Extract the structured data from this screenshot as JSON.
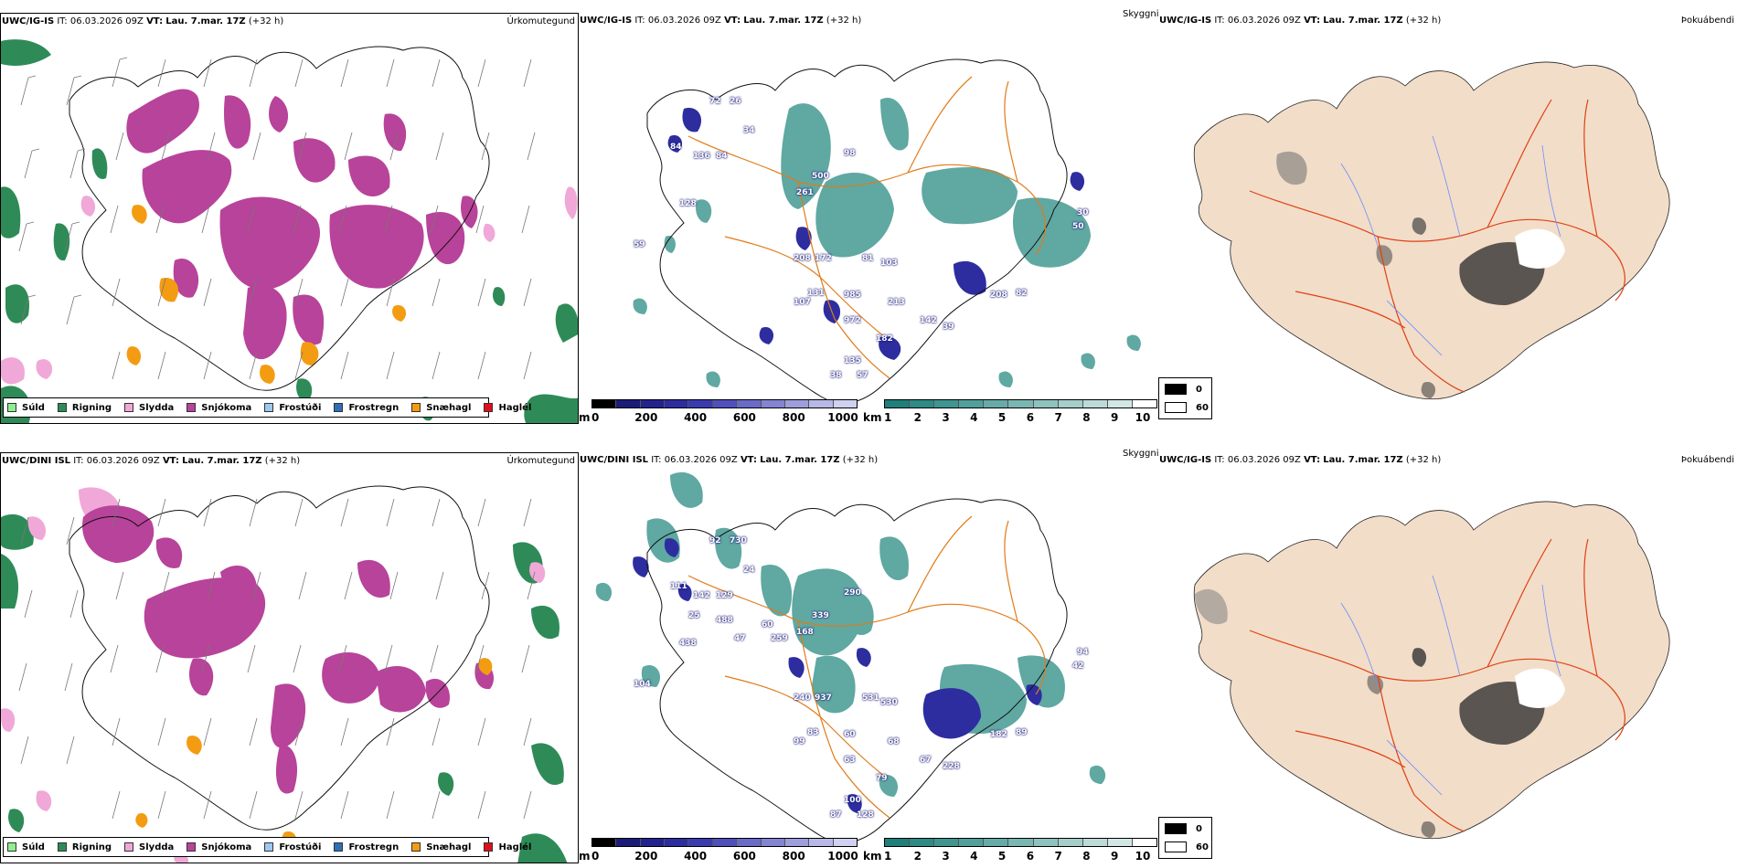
{
  "rows": [
    {
      "model": "UWC/IG-IS",
      "it_label": "IT:",
      "it_value": "06.03.2026 09Z",
      "vt_label": "VT:",
      "vt_value": "Lau. 7.mar. 17Z",
      "lead": "(+32 h)",
      "titles": {
        "ptype": "Úrkomutegund",
        "visibility": "Skyggni",
        "fog": "Þokuábendi"
      }
    },
    {
      "model": "UWC/DINI ISL",
      "it_label": "IT:",
      "it_value": "06.03.2026 09Z",
      "vt_label": "VT:",
      "vt_value": "Lau. 7.mar. 17Z",
      "lead": "(+32 h)",
      "titles": {
        "ptype": "Úrkomutegund",
        "visibility": "Skyggni",
        "fog": "Þokuábendi"
      }
    }
  ],
  "third_header_model": "UWC/IG-IS",
  "precip_legend": [
    {
      "label": "Súld",
      "color": "#90ee90"
    },
    {
      "label": "Rigning",
      "color": "#2e8b57"
    },
    {
      "label": "Slydda",
      "color": "#f0a8d8"
    },
    {
      "label": "Snjókoma",
      "color": "#b8439a"
    },
    {
      "label": "Frostúði",
      "color": "#9ec8f0"
    },
    {
      "label": "Frostregn",
      "color": "#2f6fb6"
    },
    {
      "label": "Snæhagl",
      "color": "#f39c12"
    },
    {
      "label": "Haglél",
      "color": "#e0101a"
    }
  ],
  "cloudbase_bar": {
    "unit": "m",
    "ticks": [
      "0",
      "200",
      "400",
      "600",
      "800",
      "1000"
    ],
    "colors": [
      "#000000",
      "#1b1b7a",
      "#23238f",
      "#2d2da0",
      "#3b3bb0",
      "#5050bc",
      "#6a6ac8",
      "#8484d2",
      "#9e9edc",
      "#b8b8e6",
      "#d0d0f0"
    ]
  },
  "visibility_bar": {
    "unit": "km",
    "ticks": [
      "1",
      "2",
      "3",
      "4",
      "5",
      "6",
      "7",
      "8",
      "9",
      "10"
    ],
    "colors": [
      "#1f7f7a",
      "#2e8a85",
      "#3f9590",
      "#52a09b",
      "#66aba7",
      "#7ab6b2",
      "#8fc2be",
      "#a5cecb",
      "#bbdad8",
      "#d2e7e5",
      "#ffffff"
    ]
  },
  "fog_legend": [
    {
      "label": "0",
      "color": "#000000"
    },
    {
      "label": "60",
      "color": "#ffffff"
    }
  ],
  "cloudbase_labels_top": [
    "72",
    "26",
    "34",
    "84",
    "136",
    "84",
    "128",
    "59",
    "500",
    "261",
    "98",
    "208",
    "172",
    "81",
    "103",
    "985",
    "972",
    "213",
    "142",
    "39",
    "131",
    "107",
    "135",
    "38",
    "57",
    "182",
    "208",
    "82",
    "30",
    "50"
  ],
  "cloudbase_labels_bottom": [
    "92",
    "730",
    "24",
    "111",
    "142",
    "129",
    "438",
    "104",
    "339",
    "168",
    "290",
    "240",
    "937",
    "531",
    "530",
    "60",
    "63",
    "68",
    "67",
    "228",
    "83",
    "99",
    "100",
    "87",
    "128",
    "79",
    "182",
    "89",
    "94",
    "42",
    "25",
    "488",
    "47",
    "60",
    "259"
  ],
  "colors": {
    "coast": "#111111",
    "roads": "#e07b18",
    "rivers": "#6b8cff",
    "fog_land": "#f2ddc9",
    "fog_roads": "#e04010"
  }
}
